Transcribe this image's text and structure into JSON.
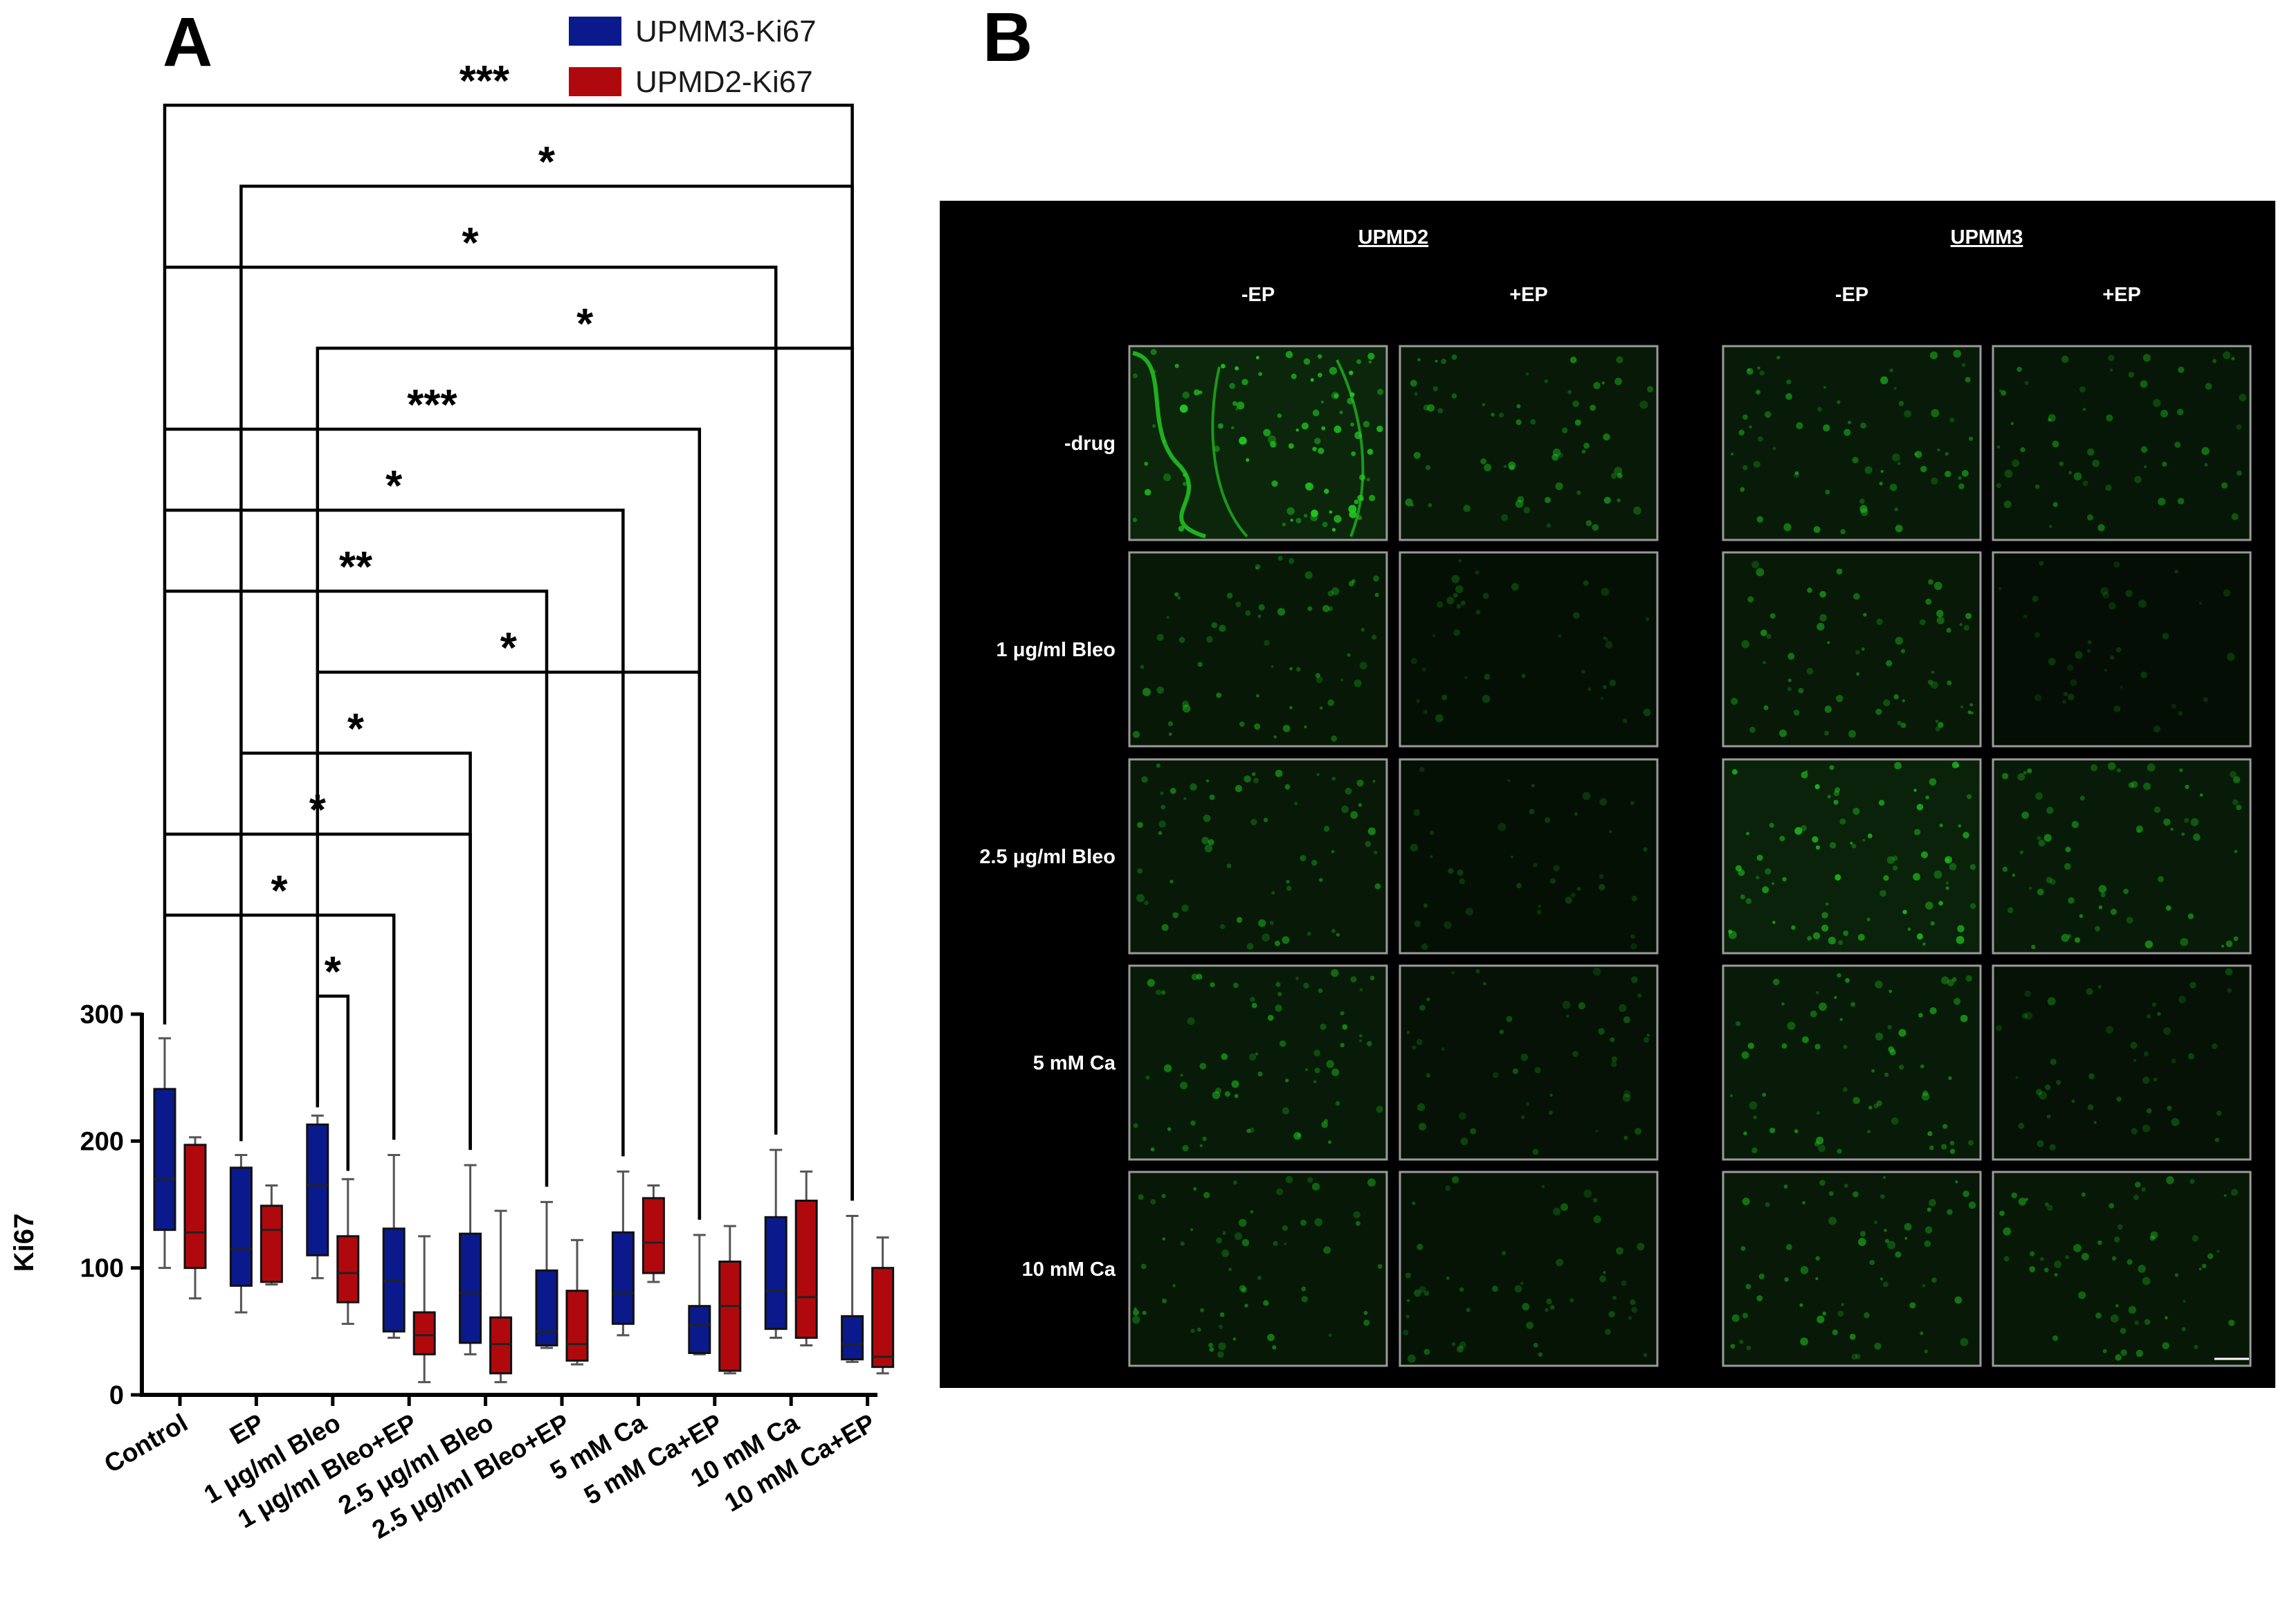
{
  "panel_labels": {
    "a": "A",
    "b": "B"
  },
  "colors": {
    "upmm3": "#0a1a8c",
    "upmd2": "#b0090d",
    "whisker": "#555555",
    "micro_bg": "#000000",
    "tissue": "#22c922"
  },
  "chart_data": {
    "type": "box",
    "ylabel": "Ki67",
    "xlabel": "",
    "ylim": [
      0,
      300
    ],
    "yticks": [
      0,
      100,
      200,
      300
    ],
    "grid": false,
    "legend_position": "top-center",
    "categories": [
      "Control",
      "EP",
      "1 μg/ml Bleo",
      "1 μg/ml Bleo+EP",
      "2.5 μg/ml Bleo",
      "2.5 μg/ml Bleo+EP",
      "5 mM Ca",
      "5 mM Ca+EP",
      "10 mM Ca",
      "10 mM Ca+EP"
    ],
    "series": [
      {
        "name": "UPMM3-Ki67",
        "boxes": [
          {
            "min": 100,
            "q1": 130,
            "median": 170,
            "q3": 241,
            "max": 281
          },
          {
            "min": 65,
            "q1": 86,
            "median": 115,
            "q3": 179,
            "max": 189
          },
          {
            "min": 92,
            "q1": 110,
            "median": 165,
            "q3": 213,
            "max": 220
          },
          {
            "min": 45,
            "q1": 50,
            "median": 90,
            "q3": 131,
            "max": 189
          },
          {
            "min": 32,
            "q1": 41,
            "median": 80,
            "q3": 127,
            "max": 181
          },
          {
            "min": 37,
            "q1": 39,
            "median": 50,
            "q3": 98,
            "max": 152
          },
          {
            "min": 47,
            "q1": 56,
            "median": 80,
            "q3": 128,
            "max": 176
          },
          {
            "min": 32,
            "q1": 33,
            "median": 55,
            "q3": 70,
            "max": 126
          },
          {
            "min": 45,
            "q1": 52,
            "median": 82,
            "q3": 140,
            "max": 193
          },
          {
            "min": 26,
            "q1": 28,
            "median": 40,
            "q3": 62,
            "max": 141
          }
        ]
      },
      {
        "name": "UPMD2-Ki67",
        "boxes": [
          {
            "min": 76,
            "q1": 100,
            "median": 128,
            "q3": 197,
            "max": 203
          },
          {
            "min": 87,
            "q1": 89,
            "median": 130,
            "q3": 149,
            "max": 165
          },
          {
            "min": 56,
            "q1": 73,
            "median": 96,
            "q3": 125,
            "max": 170
          },
          {
            "min": 10,
            "q1": 32,
            "median": 47,
            "q3": 65,
            "max": 125
          },
          {
            "min": 10,
            "q1": 17,
            "median": 40,
            "q3": 61,
            "max": 145
          },
          {
            "min": 24,
            "q1": 27,
            "median": 40,
            "q3": 82,
            "max": 122
          },
          {
            "min": 89,
            "q1": 96,
            "median": 120,
            "q3": 155,
            "max": 165
          },
          {
            "min": 17,
            "q1": 19,
            "median": 70,
            "q3": 105,
            "max": 133
          },
          {
            "min": 39,
            "q1": 45,
            "median": 77,
            "q3": 153,
            "max": 176
          },
          {
            "min": 17,
            "q1": 22,
            "median": 30,
            "q3": 100,
            "max": 124
          }
        ]
      }
    ],
    "comparisons": [
      {
        "from": 0,
        "to": 9,
        "label": "***"
      },
      {
        "from": 1,
        "to": 9,
        "label": "*"
      },
      {
        "from": 0,
        "to": 8,
        "label": "*"
      },
      {
        "from": 2,
        "to": 9,
        "label": "*"
      },
      {
        "from": 0,
        "to": 7,
        "label": "***"
      },
      {
        "from": 0,
        "to": 6,
        "label": "*"
      },
      {
        "from": 0,
        "to": 5,
        "label": "**"
      },
      {
        "from": 2,
        "to": 7,
        "label": "*"
      },
      {
        "from": 1,
        "to": 4,
        "label": "*"
      },
      {
        "from": 0,
        "to": 4,
        "label": "*"
      },
      {
        "from": 0,
        "to": 3,
        "label": "*"
      },
      {
        "from": 2,
        "to": 2,
        "label": "*"
      }
    ]
  },
  "micrograph": {
    "groups": [
      "UPMD2",
      "UPMM3"
    ],
    "columns": [
      "-EP",
      "+EP",
      "-EP",
      "+EP"
    ],
    "rows": [
      "-drug",
      "1 μg/ml Bleo",
      "2.5 μg/ml Bleo",
      "5 mM Ca",
      "10 mM Ca"
    ],
    "brightness": [
      [
        1.0,
        0.55,
        0.6,
        0.45
      ],
      [
        0.5,
        0.2,
        0.55,
        0.15
      ],
      [
        0.55,
        0.2,
        0.85,
        0.6
      ],
      [
        0.6,
        0.3,
        0.6,
        0.3
      ],
      [
        0.5,
        0.35,
        0.55,
        0.5
      ]
    ]
  }
}
